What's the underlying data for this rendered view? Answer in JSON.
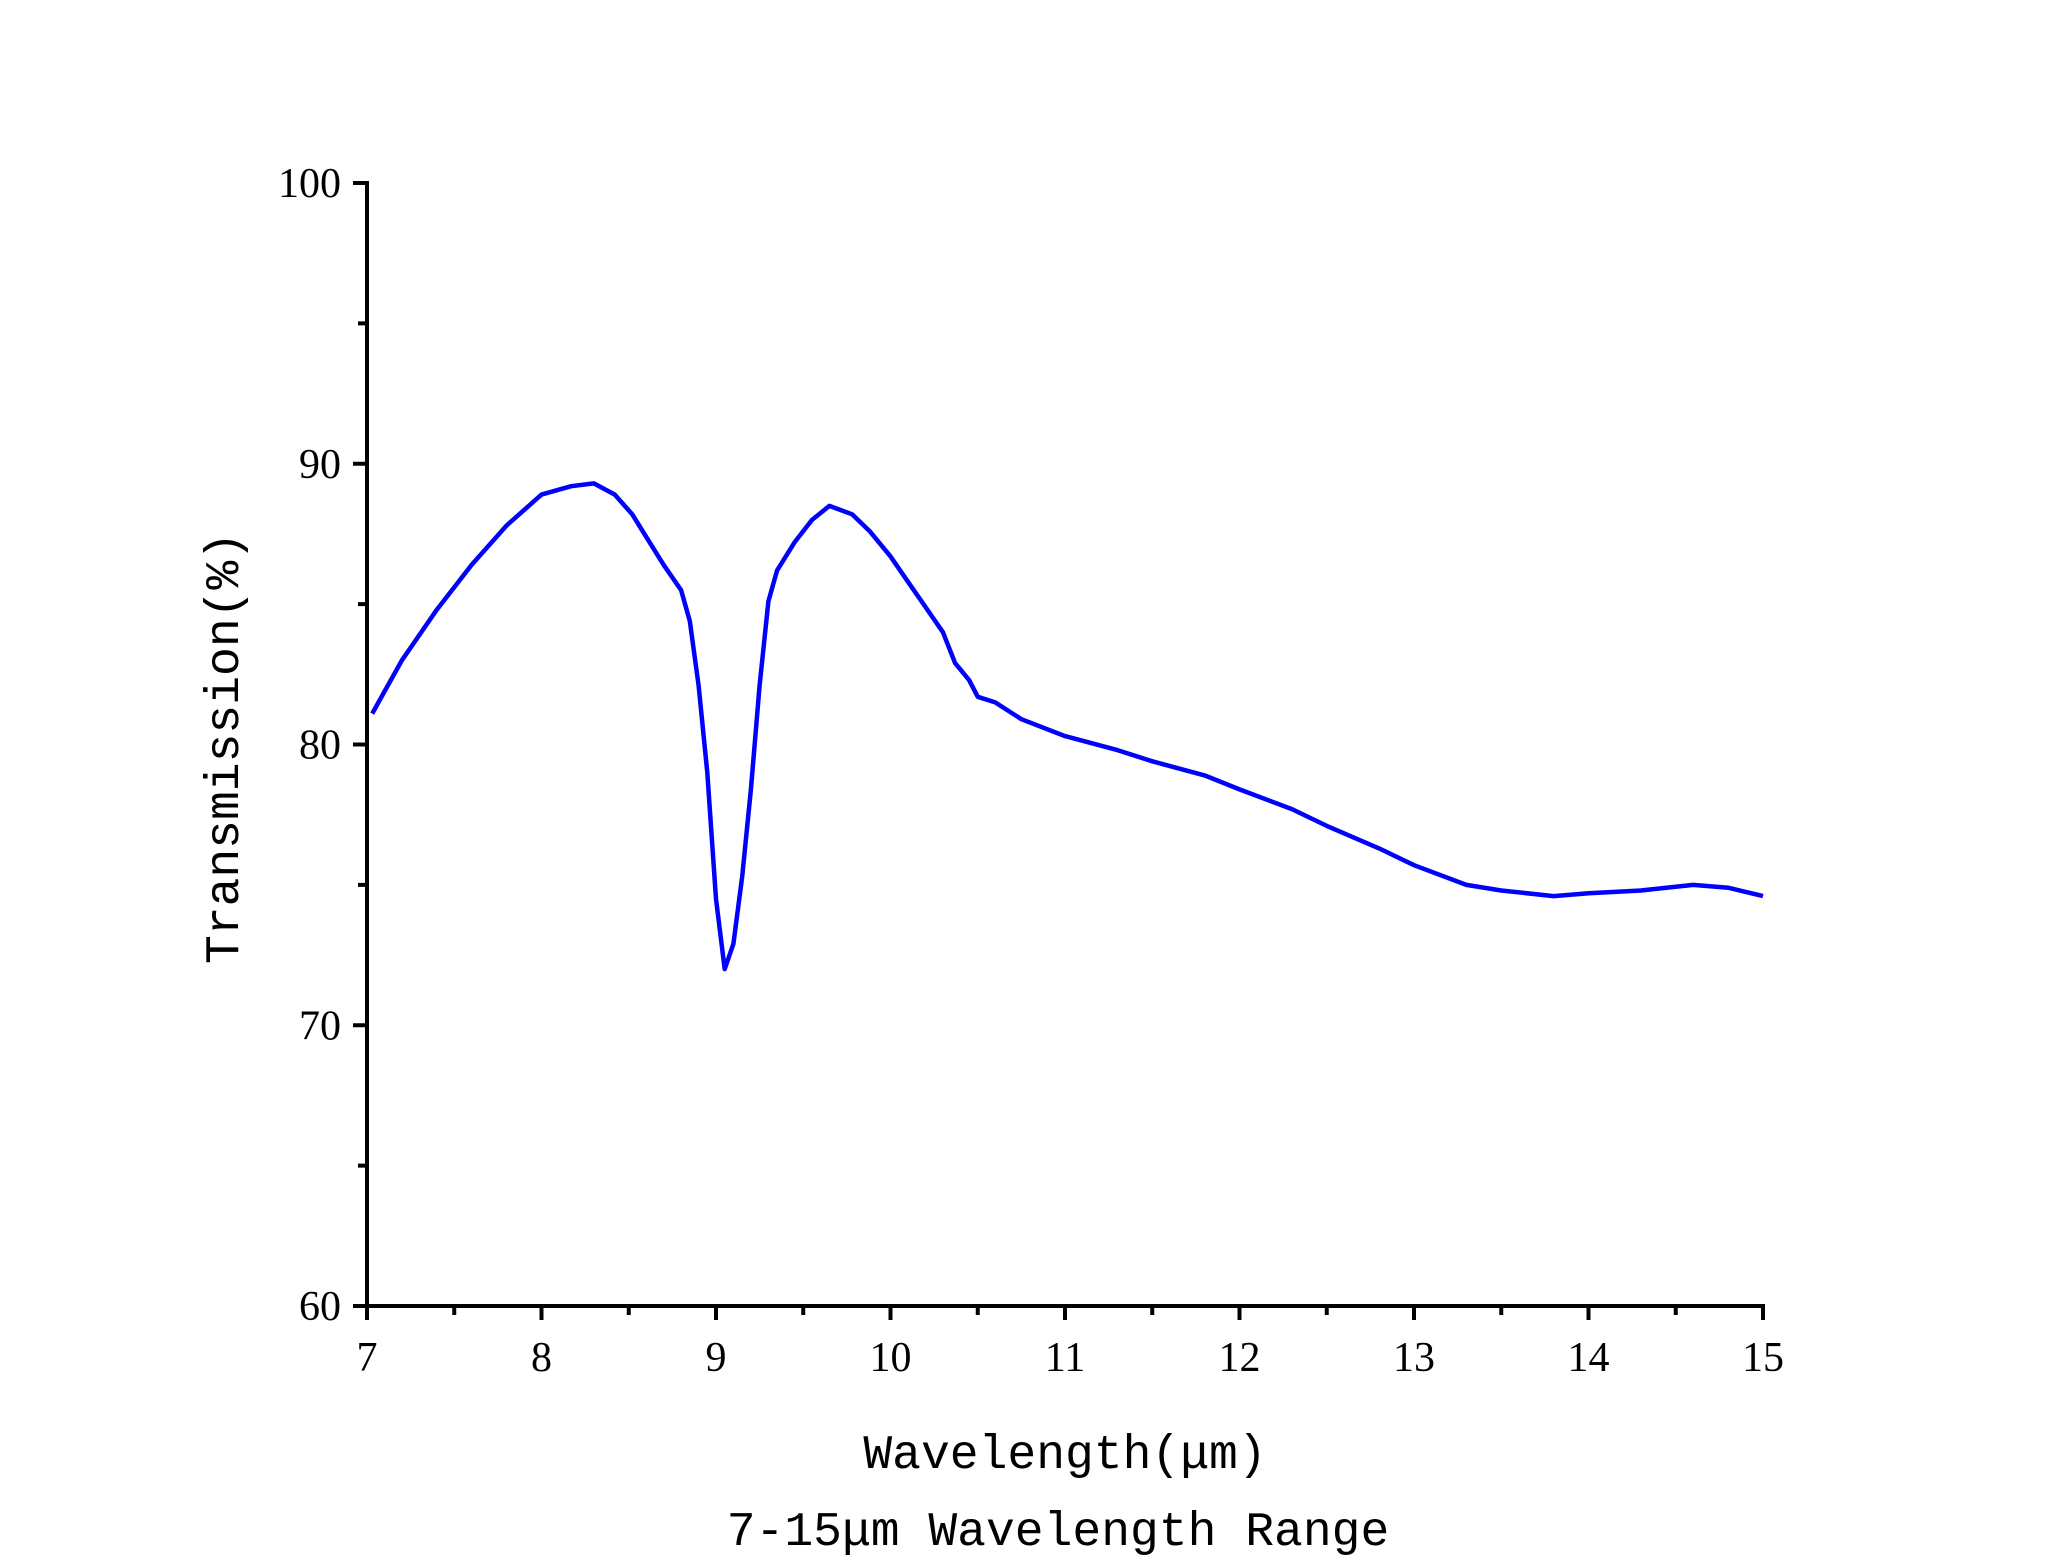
{
  "chart_data": {
    "type": "line",
    "title": "",
    "caption": "7-15μm Wavelength Range",
    "xlabel": "Wavelength(μm)",
    "ylabel": "Transmission(%)",
    "xlim": [
      7,
      15
    ],
    "ylim": [
      60,
      100
    ],
    "xticks": [
      "7",
      "8",
      "9",
      "10",
      "11",
      "12",
      "13",
      "14",
      "15"
    ],
    "yticks": [
      "60",
      "70",
      "80",
      "90",
      "100"
    ],
    "grid": false,
    "legend": "none",
    "line_color": "#0000ff",
    "series": [
      {
        "x": [
          7.03,
          7.2,
          7.4,
          7.6,
          7.8,
          8.0,
          8.17,
          8.3,
          8.42,
          8.52,
          8.7,
          8.8,
          8.85,
          8.9,
          8.95,
          9.0,
          9.05,
          9.1,
          9.15,
          9.2,
          9.25,
          9.3,
          9.35,
          9.45,
          9.55,
          9.65,
          9.78,
          9.88,
          10.0,
          10.1,
          10.2,
          10.3,
          10.37,
          10.45,
          10.5,
          10.6,
          10.75,
          11.0,
          11.3,
          11.5,
          11.8,
          12.0,
          12.3,
          12.5,
          12.8,
          13.0,
          13.3,
          13.5,
          13.8,
          14.0,
          14.3,
          14.6,
          14.8,
          15.0
        ],
        "y": [
          81.1,
          83.0,
          84.8,
          86.4,
          87.8,
          88.9,
          89.2,
          89.3,
          88.9,
          88.2,
          86.4,
          85.5,
          84.4,
          82.1,
          79.0,
          74.5,
          72.0,
          72.9,
          75.3,
          78.4,
          82.1,
          85.1,
          86.2,
          87.2,
          88.0,
          88.5,
          88.2,
          87.6,
          86.7,
          85.8,
          84.9,
          84.0,
          82.9,
          82.3,
          81.7,
          81.5,
          80.9,
          80.3,
          79.8,
          79.4,
          78.9,
          78.4,
          77.7,
          77.1,
          76.3,
          75.7,
          75.0,
          74.8,
          74.6,
          74.7,
          74.8,
          75.0,
          74.9,
          74.6
        ]
      }
    ]
  }
}
